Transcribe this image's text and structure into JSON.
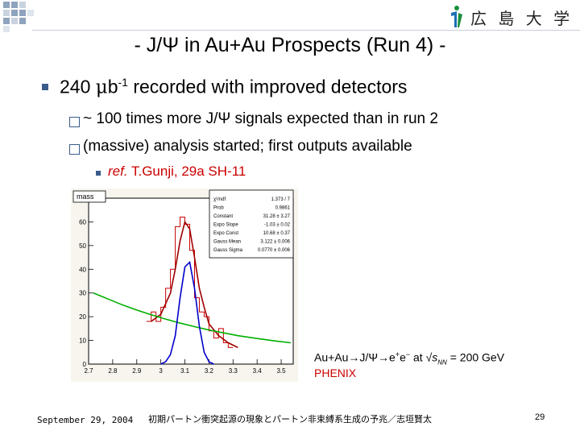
{
  "header": {
    "university_logo_text": "広 島 大 学"
  },
  "slide": {
    "title": "- J/Ψ in Au+Au Prospects (Run 4) -",
    "bullets": [
      {
        "text_before": "240 ",
        "mu": "μ",
        "text_b": "b",
        "sup": "-1",
        "text_after": " recorded with improved detectors"
      }
    ],
    "sub_bullets": [
      "~ 100 times more J/Ψ signals expected than in run 2",
      "(massive) analysis started; first outputs available"
    ],
    "ref": {
      "italic": "ref.",
      "text": " T.Gunji, 29a SH-11"
    }
  },
  "plot": {
    "hist_label": "mass",
    "stats": [
      {
        "label": "χ²/ndf",
        "value": "1.373 / 7"
      },
      {
        "label": "Prob",
        "value": "0.9861"
      },
      {
        "label": "Constant",
        "value": "31.28 ± 3.27"
      },
      {
        "label": "Expo Slope",
        "value": "-1.03 ± 0.02"
      },
      {
        "label": "Expo Const",
        "value": "10.68 ± 0.37"
      },
      {
        "label": "Gauss Mean",
        "value": "3.122 ± 0.006"
      },
      {
        "label": "Gauss Sigma",
        "value": "0.0770 ± 0.006"
      }
    ],
    "reaction_text_a": "Au+Au→J/Ψ→e",
    "reaction_text_b": "e",
    "reaction_text_c": " at √",
    "reaction_s": "s",
    "reaction_nn": "NN",
    "reaction_text_d": " = 200 GeV",
    "experiment": "PHENIX"
  },
  "chart_data": {
    "type": "line",
    "x_ticks": [
      "2.7",
      "2.8",
      "2.9",
      "3",
      "3.1",
      "3.2",
      "3.3",
      "3.4",
      "3.5"
    ],
    "y_ticks": [
      "0",
      "10",
      "20",
      "30",
      "40",
      "50",
      "60"
    ],
    "xlim": [
      2.7,
      3.55
    ],
    "ylim": [
      0,
      70
    ],
    "series": [
      {
        "x": [
          2.95,
          2.97,
          2.99,
          3.01,
          3.03,
          3.05,
          3.07,
          3.09,
          3.11,
          3.13,
          3.15,
          3.17,
          3.19,
          3.21,
          3.23,
          3.25,
          3.27,
          3.29
        ],
        "values": [
          18,
          22,
          18,
          24,
          32,
          40,
          58,
          62,
          59,
          48,
          28,
          22,
          20,
          14,
          11,
          15,
          9,
          7
        ]
      },
      {
        "x": [
          2.96,
          3.0,
          3.04,
          3.06,
          3.08,
          3.1,
          3.12,
          3.14,
          3.16,
          3.18,
          3.2,
          3.24,
          3.28,
          3.32
        ],
        "values": [
          18,
          21,
          30,
          40,
          52,
          60,
          57,
          45,
          32,
          24,
          17,
          12,
          9,
          7
        ]
      },
      {
        "x": [
          2.72,
          2.78,
          2.84,
          2.9,
          2.96,
          3.02,
          3.08,
          3.14,
          3.2,
          3.26,
          3.32,
          3.4,
          3.48,
          3.54
        ],
        "values": [
          30,
          27.5,
          25,
          22.8,
          20.8,
          19,
          17.3,
          15.8,
          14.4,
          13.2,
          12,
          10.8,
          9.7,
          9
        ]
      },
      {
        "x": [
          3.0,
          3.02,
          3.04,
          3.06,
          3.08,
          3.1,
          3.12,
          3.14,
          3.16,
          3.18,
          3.2,
          3.22
        ],
        "values": [
          0,
          1,
          4,
          12,
          28,
          41,
          43,
          32,
          16,
          5,
          1,
          0
        ]
      }
    ]
  },
  "footer": {
    "date": "September 29, 2004",
    "title": "初期パートン衝突起源の現象とパートン非束縛系生成の予兆／志垣賢太",
    "page": "29"
  },
  "colors": {
    "bullet": "#3a5c8c",
    "accent_red": "#cc0000",
    "data_hist": "#c80000",
    "fit_total": "#a00000",
    "background_fit": "#00b000",
    "signal_fit": "#0000cc"
  }
}
